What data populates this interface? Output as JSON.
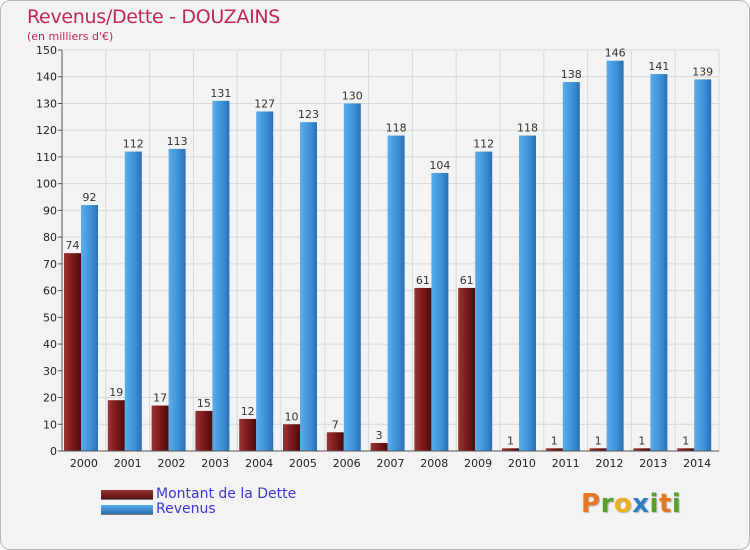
{
  "chart_data": {
    "type": "bar",
    "title": "Revenus/Dette - DOUZAINS",
    "subtitle": "(en milliers d'€)",
    "categories": [
      "2000",
      "2001",
      "2002",
      "2003",
      "2004",
      "2005",
      "2006",
      "2007",
      "2008",
      "2009",
      "2010",
      "2011",
      "2012",
      "2013",
      "2014"
    ],
    "series": [
      {
        "name": "Montant de la Dette",
        "color": "#7a1a1a",
        "values": [
          74,
          19,
          17,
          15,
          12,
          10,
          7,
          3,
          61,
          61,
          1,
          1,
          1,
          1,
          1
        ]
      },
      {
        "name": "Revenus",
        "color": "#3d8fd6",
        "values": [
          92,
          112,
          113,
          131,
          127,
          123,
          130,
          118,
          104,
          112,
          118,
          138,
          146,
          141,
          139
        ]
      }
    ],
    "ylim": [
      0,
      150
    ],
    "yticks": [
      0,
      10,
      20,
      30,
      40,
      50,
      60,
      70,
      80,
      90,
      100,
      110,
      120,
      130,
      140,
      150
    ],
    "grid": true,
    "legend_position": "bottom-left"
  },
  "logo": {
    "letters": [
      "P",
      "r",
      "o",
      "x",
      "i",
      "t",
      "i"
    ],
    "colors": [
      "#e87722",
      "#5aa02c",
      "#e8b022",
      "#2f7fc8",
      "#5aa02c",
      "#e87722",
      "#5aa02c"
    ]
  }
}
